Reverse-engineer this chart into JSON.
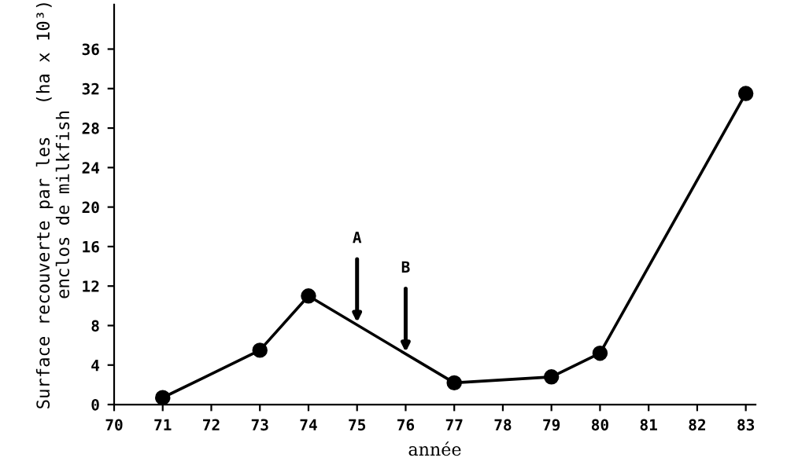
{
  "chart_data": {
    "type": "line",
    "xlabel": "année",
    "ylabel": "Surface recouverte par les   (ha x 10³)\nenclos de milkfish",
    "x": [
      71,
      73,
      74,
      77,
      79,
      80,
      83
    ],
    "series": [
      {
        "color": "#000000",
        "values": [
          0.7,
          5.5,
          11,
          2.2,
          2.8,
          5.2,
          31.5
        ]
      }
    ],
    "xlim": [
      70,
      83.2
    ],
    "xticks": [
      70,
      71,
      72,
      73,
      74,
      75,
      76,
      77,
      78,
      79,
      80,
      81,
      82,
      83
    ],
    "ylim": [
      0,
      40.5
    ],
    "yticks": [
      0,
      4,
      8,
      12,
      16,
      20,
      24,
      28,
      32,
      36
    ],
    "marker": "circle",
    "line_style": "solid",
    "grid": false,
    "legend": false,
    "annotations": [
      {
        "text": "A",
        "x": 75,
        "y": 8.1
      },
      {
        "text": "B",
        "x": 76,
        "y": 5.1
      }
    ]
  }
}
